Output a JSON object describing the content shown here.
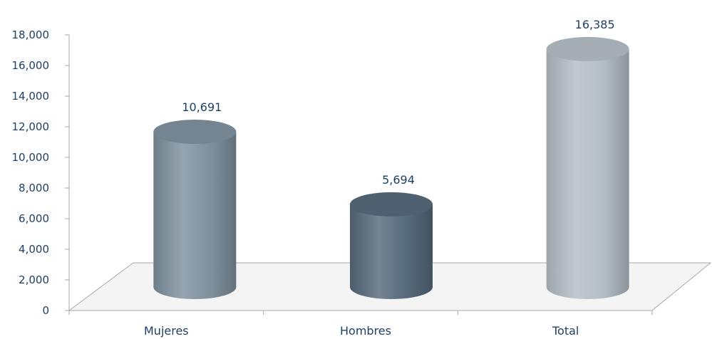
{
  "chart_data": {
    "type": "bar",
    "categories": [
      "Mujeres",
      "Hombres",
      "Total"
    ],
    "values": [
      10691,
      5694,
      16385
    ],
    "data_labels": [
      "10,691",
      "5,694",
      "16,385"
    ],
    "title": "",
    "xlabel": "",
    "ylabel": "",
    "ylim": [
      0,
      18000
    ],
    "yticks": [
      0,
      2000,
      4000,
      6000,
      8000,
      10000,
      12000,
      14000,
      16000,
      18000
    ],
    "ytick_labels": [
      "0",
      "2,000",
      "4,000",
      "6,000",
      "8,000",
      "10,000",
      "12,000",
      "14,000",
      "16,000",
      "18,000"
    ],
    "grid": false,
    "legend": "none",
    "style": "3d-cylinder",
    "colors": [
      "#7e909d",
      "#56697a",
      "#b3bdc5"
    ],
    "label_color": "#1f3f66"
  }
}
